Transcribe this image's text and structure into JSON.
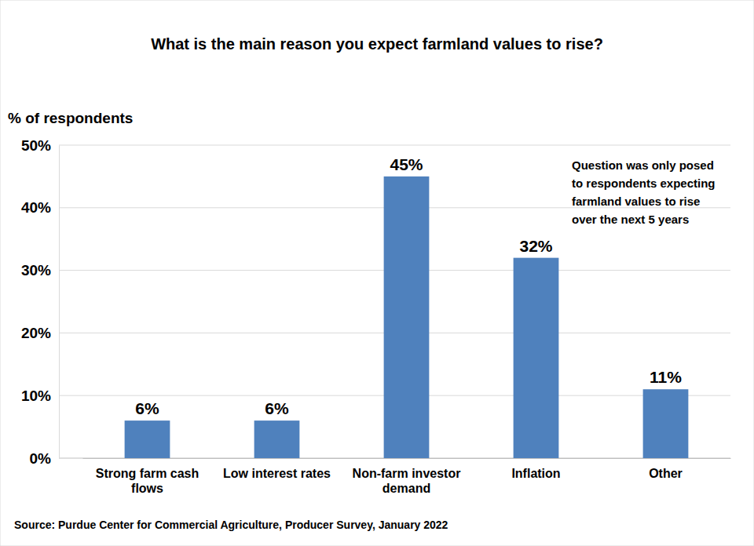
{
  "chart_data": {
    "type": "bar",
    "title": "What is the main reason you expect farmland values to rise?",
    "y_label": "% of respondents",
    "categories": [
      "Strong farm cash flows",
      "Low interest rates",
      "Non-farm investor demand",
      "Inflation",
      "Other"
    ],
    "values": [
      6,
      6,
      45,
      32,
      11
    ],
    "value_labels": [
      "6%",
      "6%",
      "45%",
      "32%",
      "11%"
    ],
    "color": "#4f81bd",
    "ylim": [
      0,
      50
    ],
    "yticks": [
      {
        "value": 0,
        "label": "0%"
      },
      {
        "value": 10,
        "label": "10%"
      },
      {
        "value": 20,
        "label": "20%"
      },
      {
        "value": 30,
        "label": "30%"
      },
      {
        "value": 40,
        "label": "40%"
      },
      {
        "value": 50,
        "label": "50%"
      }
    ],
    "grid": true,
    "data_labels": true,
    "annotation": [
      "Question was only posed",
      "to respondents expecting",
      "farmland values to rise",
      "over the next 5 years"
    ],
    "source": "Source: Purdue Center for Commercial Agriculture, Producer Survey, January 2022"
  }
}
